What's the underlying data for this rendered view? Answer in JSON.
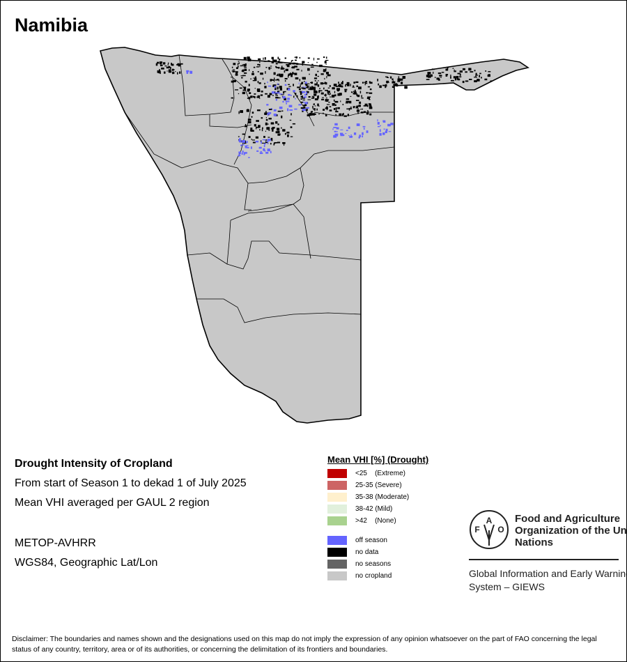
{
  "title": "Namibia",
  "info": {
    "heading": "Drought Intensity of Cropland",
    "period": "From start of Season 1 to dekad 1 of July 2025",
    "method": "Mean VHI averaged per GAUL 2 region",
    "sensor": "METOP-AVHRR",
    "projection": "WGS84, Geographic Lat/Lon"
  },
  "legend": {
    "title": "Mean VHI [%] (Drought)",
    "classes": [
      {
        "label": "<25    (Extreme)",
        "color": "#c00000"
      },
      {
        "label": "25-35 (Severe)",
        "color": "#cd6464"
      },
      {
        "label": "35-38 (Moderate)",
        "color": "#fff0cd"
      },
      {
        "label": "38-42 (Mild)",
        "color": "#e1f0dc"
      },
      {
        "label": ">42    (None)",
        "color": "#a9d28f"
      }
    ],
    "other": [
      {
        "label": "off season",
        "color": "#6464ff"
      },
      {
        "label": "no data",
        "color": "#000000"
      },
      {
        "label": "no seasons",
        "color": "#646464"
      },
      {
        "label": "no cropland",
        "color": "#c8c8c8"
      }
    ]
  },
  "fao": {
    "logo_text": "FAO FIAT PANIS",
    "name": "Food and Agriculture Organization of the United Nations",
    "giews": "Global Information and Early Warning System – GIEWS"
  },
  "disclaimer": "Disclaimer: The boundaries and names shown and the designations used on this map do not imply the expression of any opinion whatsoever on the part of FAO concerning the legal status of any country, territory, area or of its authorities, or concerning the delimitation of its frontiers and boundaries."
}
